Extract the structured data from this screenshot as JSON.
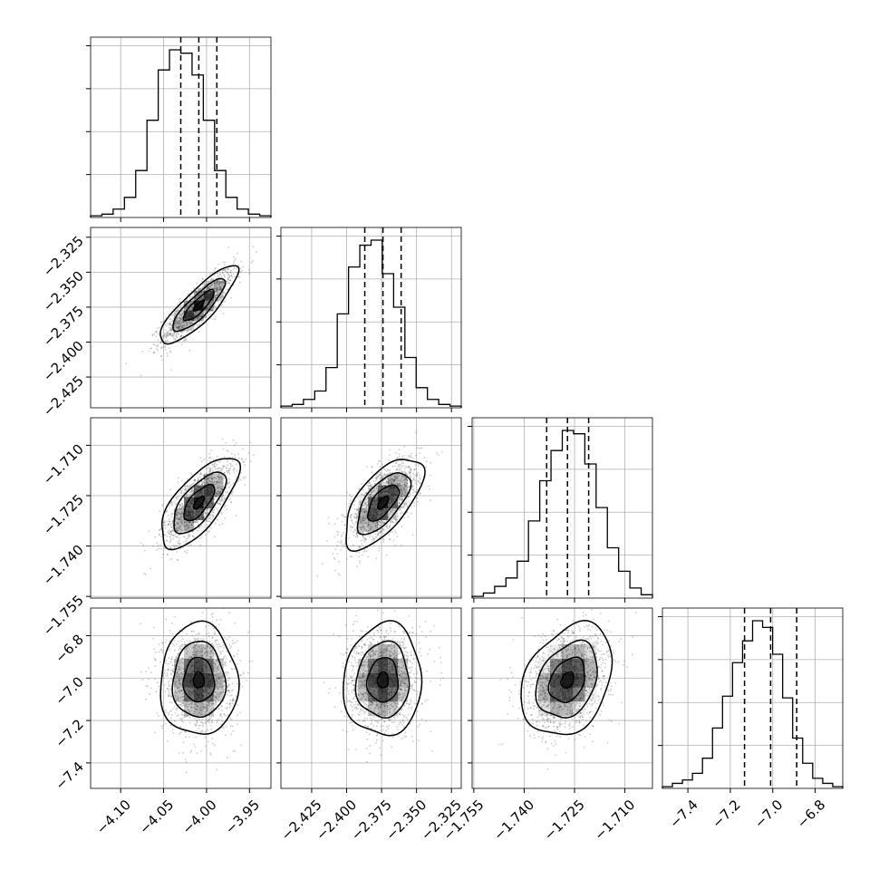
{
  "chart_data": {
    "type": "corner",
    "parameters": [
      {
        "range": [
          -4.135,
          -3.925
        ],
        "ticks": [
          -4.1,
          -4.05,
          -4.0,
          -3.95
        ],
        "tick_labels": [
          "−4.10",
          "−4.05",
          "−4.00",
          "−3.95"
        ],
        "quantiles": [
          -4.03,
          -4.009,
          -3.988
        ],
        "hist": [
          1,
          2,
          5,
          12,
          28,
          58,
          88,
          100,
          98,
          85,
          58,
          28,
          12,
          5,
          2,
          1
        ]
      },
      {
        "range": [
          -2.447,
          -2.318
        ],
        "ticks": [
          -2.425,
          -2.4,
          -2.375,
          -2.35,
          -2.325
        ],
        "tick_labels": [
          "−2.425",
          "−2.400",
          "−2.375",
          "−2.350",
          "−2.325"
        ],
        "quantiles": [
          -2.387,
          -2.374,
          -2.361
        ],
        "hist": [
          1,
          2,
          5,
          10,
          24,
          56,
          84,
          97,
          100,
          80,
          60,
          30,
          12,
          5,
          2,
          1
        ]
      },
      {
        "range": [
          -1.7555,
          -1.7018
        ],
        "ticks": [
          -1.755,
          -1.74,
          -1.725,
          -1.71
        ],
        "tick_labels": [
          "−1.755",
          "−1.740",
          "−1.725",
          "−1.710"
        ],
        "quantiles": [
          -1.7333,
          -1.7271,
          -1.7208
        ],
        "hist": [
          1,
          3,
          7,
          12,
          22,
          46,
          70,
          88,
          100,
          98,
          80,
          54,
          30,
          16,
          6,
          2
        ]
      },
      {
        "range": [
          -7.52,
          -6.67
        ],
        "ticks": [
          -7.4,
          -7.2,
          -7.0,
          -6.8
        ],
        "tick_labels": [
          "−7.4",
          "−7.2",
          "−7.0",
          "−6.8"
        ],
        "quantiles": [
          -7.133,
          -7.01,
          -6.887
        ],
        "hist": [
          1,
          3,
          5,
          9,
          18,
          36,
          55,
          75,
          88,
          100,
          96,
          80,
          54,
          30,
          15,
          6,
          3,
          1
        ]
      }
    ],
    "pairs": [
      {
        "row": 1,
        "col": 0,
        "rho": 0.85,
        "mean": [
          -4.009,
          -2.374
        ],
        "sd": [
          0.021,
          0.013
        ]
      },
      {
        "row": 2,
        "col": 0,
        "rho": 0.7,
        "mean": [
          -4.009,
          -1.7271
        ],
        "sd": [
          0.021,
          0.0063
        ]
      },
      {
        "row": 2,
        "col": 1,
        "rho": 0.65,
        "mean": [
          -2.374,
          -1.7271
        ],
        "sd": [
          0.013,
          0.0063
        ]
      },
      {
        "row": 3,
        "col": 0,
        "rho": 0.0,
        "mean": [
          -4.009,
          -7.01
        ],
        "sd": [
          0.021,
          0.123
        ]
      },
      {
        "row": 3,
        "col": 1,
        "rho": 0.05,
        "mean": [
          -2.374,
          -7.01
        ],
        "sd": [
          0.013,
          0.123
        ]
      },
      {
        "row": 3,
        "col": 2,
        "rho": 0.3,
        "mean": [
          -1.7271,
          -7.01
        ],
        "sd": [
          0.0063,
          0.123
        ]
      }
    ],
    "grid": true,
    "colors": {
      "line": "#000000",
      "grid": "#b0b0b0",
      "density": "#000000",
      "points": "#555555"
    }
  }
}
